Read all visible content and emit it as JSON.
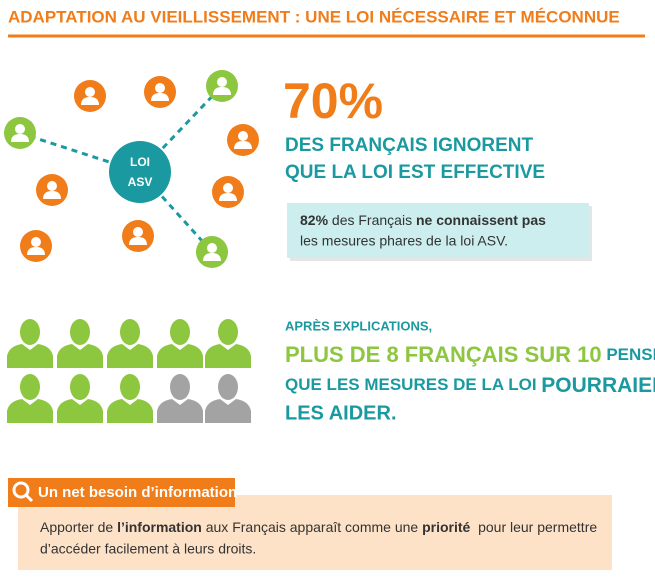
{
  "header": {
    "title": "ADAPTATION AU VIEILLISSEMENT : UNE LOI NÉCESSAIRE ET MÉCONNUE"
  },
  "diagram": {
    "hub_line1": "LOI",
    "hub_line2": "ASV"
  },
  "stat1": {
    "big": "70%",
    "line1": "DES FRANÇAIS IGNORENT",
    "line2": "QUE LA LOI EST EFFECTIVE",
    "callout": {
      "part1": "82%",
      "part2": " des Français ",
      "part3": "ne connaissent pas",
      "line2": "les mesures phares de la loi ASV."
    }
  },
  "stat2": {
    "intro": "APRÈS EXPLICATIONS,",
    "highlight": "PLUS DE 8 FRANÇAIS SUR 10",
    "after_highlight": " PENSENT",
    "line2a": "QUE LES MESURES DE LA LOI ",
    "line2b": "POURRAIENT",
    "line3": "LES AIDER."
  },
  "info": {
    "heading": "Un net besoin d’information",
    "part1": "Apporter de ",
    "part2": "l’information",
    "part3": " aux Français apparaît comme une ",
    "part4": "priorité",
    "part5": "  pour leur permettre",
    "line2": "d’accéder facilement à leurs droits."
  }
}
